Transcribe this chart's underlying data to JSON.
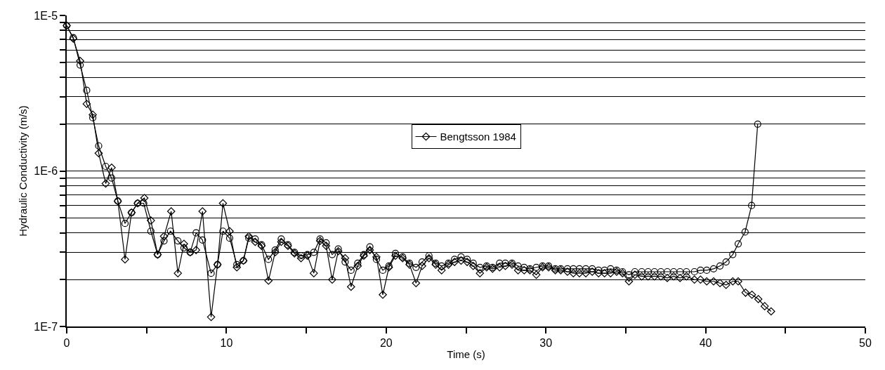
{
  "chart_data": {
    "type": "line",
    "xlabel": "Time (s)",
    "ylabel": "Hydraulic Conductivity (m/s)",
    "xlim": [
      0,
      50
    ],
    "xticks": [
      0,
      {
        "value": 5,
        "label": null
      },
      10,
      {
        "value": 15,
        "label": null
      },
      20,
      {
        "value": 25,
        "label": null
      },
      30,
      {
        "value": 35,
        "label": null
      },
      40,
      {
        "value": 45,
        "label": null
      },
      50
    ],
    "ylim": [
      1e-07,
      1e-05
    ],
    "log": "y",
    "yticks": [
      {
        "value": 1e-07,
        "label": "1E-7"
      },
      {
        "value": 2e-07,
        "label": null
      },
      {
        "value": 3e-07,
        "label": null
      },
      {
        "value": 4e-07,
        "label": null
      },
      {
        "value": 5e-07,
        "label": null
      },
      {
        "value": 6e-07,
        "label": null
      },
      {
        "value": 7e-07,
        "label": null
      },
      {
        "value": 8e-07,
        "label": null
      },
      {
        "value": 9e-07,
        "label": null
      },
      {
        "value": 1e-06,
        "label": "1E-6"
      },
      {
        "value": 2e-06,
        "label": null
      },
      {
        "value": 3e-06,
        "label": null
      },
      {
        "value": 4e-06,
        "label": null
      },
      {
        "value": 5e-06,
        "label": null
      },
      {
        "value": 6e-06,
        "label": null
      },
      {
        "value": 7e-06,
        "label": null
      },
      {
        "value": 8e-06,
        "label": null
      },
      {
        "value": 9e-06,
        "label": null
      },
      {
        "value": 1e-05,
        "label": "1E-5"
      }
    ],
    "grid": "y",
    "legend": "center",
    "line_style": "solid",
    "series": [
      {
        "name": "Bengtsson 1984",
        "color": "#000000",
        "marker": "diamond",
        "x": [
          0,
          0.41,
          0.84,
          1.25,
          1.63,
          2.0,
          2.44,
          2.81,
          3.2,
          3.65,
          4.06,
          4.44,
          4.86,
          5.27,
          5.69,
          6.09,
          6.54,
          6.96,
          7.34,
          7.73,
          8.1,
          8.5,
          9.04,
          9.44,
          9.78,
          10.2,
          10.65,
          11.06,
          11.4,
          11.8,
          12.2,
          12.63,
          13.05,
          13.43,
          13.85,
          14.26,
          14.67,
          15.07,
          15.47,
          15.86,
          16.24,
          16.62,
          17.0,
          17.43,
          17.8,
          18.22,
          18.6,
          18.98,
          19.39,
          19.79,
          20.17,
          20.58,
          21.03,
          21.46,
          21.87,
          22.25,
          22.68,
          23.1,
          23.47,
          23.9,
          24.28,
          24.69,
          25.07,
          25.45,
          25.87,
          26.29,
          26.66,
          27.1,
          27.46,
          27.88,
          28.26,
          28.64,
          29.0,
          29.4,
          29.79,
          30.17,
          30.59,
          30.93,
          31.35,
          31.72,
          32.1,
          32.5,
          32.9,
          33.3,
          33.67,
          34.05,
          34.43,
          34.8,
          35.2,
          35.57,
          36.0,
          36.4,
          36.8,
          37.2,
          37.6,
          38.0,
          38.4,
          38.8,
          39.3,
          39.68,
          40.07,
          40.5,
          40.9,
          41.28,
          41.7,
          42.04,
          42.5,
          42.9,
          43.3,
          43.7,
          44.1
        ],
        "values": [
          8.6e-06,
          7.1e-06,
          5.1e-06,
          2.7e-06,
          2.3e-06,
          1.3e-06,
          8.3e-07,
          1.05e-06,
          6.4e-07,
          2.7e-07,
          5.4e-07,
          6.2e-07,
          6.7e-07,
          4.8e-07,
          2.9e-07,
          3.8e-07,
          5.5e-07,
          2.2e-07,
          3.4e-07,
          3e-07,
          3.1e-07,
          5.5e-07,
          1.15e-07,
          2.5e-07,
          6.2e-07,
          4.1e-07,
          2.4e-07,
          2.65e-07,
          3.8e-07,
          3.5e-07,
          3.3e-07,
          1.97e-07,
          3e-07,
          3.5e-07,
          3.3e-07,
          2.95e-07,
          2.75e-07,
          2.85e-07,
          2.2e-07,
          3.55e-07,
          3.3e-07,
          2e-07,
          3.05e-07,
          2.75e-07,
          1.8e-07,
          2.45e-07,
          2.85e-07,
          3.1e-07,
          2.8e-07,
          1.6e-07,
          2.4e-07,
          2.85e-07,
          2.75e-07,
          2.5e-07,
          1.9e-07,
          2.45e-07,
          2.75e-07,
          2.5e-07,
          2.3e-07,
          2.5e-07,
          2.6e-07,
          2.65e-07,
          2.6e-07,
          2.45e-07,
          2.2e-07,
          2.4e-07,
          2.35e-07,
          2.4e-07,
          2.45e-07,
          2.5e-07,
          2.3e-07,
          2.3e-07,
          2.3e-07,
          2.15e-07,
          2.4e-07,
          2.4e-07,
          2.3e-07,
          2.3e-07,
          2.25e-07,
          2.2e-07,
          2.2e-07,
          2.2e-07,
          2.25e-07,
          2.2e-07,
          2.2e-07,
          2.2e-07,
          2.25e-07,
          2.2e-07,
          1.95e-07,
          2.15e-07,
          2.1e-07,
          2.1e-07,
          2.1e-07,
          2.1e-07,
          2.05e-07,
          2.1e-07,
          2.05e-07,
          2.1e-07,
          2e-07,
          2e-07,
          1.95e-07,
          1.95e-07,
          1.9e-07,
          1.85e-07,
          1.95e-07,
          1.95e-07,
          1.65e-07,
          1.6e-07,
          1.5e-07,
          1.35e-07,
          1.25e-07
        ]
      },
      {
        "color": "#000000",
        "marker": "circle",
        "x": [
          0,
          0.41,
          0.84,
          1.25,
          1.63,
          2.0,
          2.44,
          2.81,
          3.2,
          3.65,
          4.06,
          4.44,
          4.82,
          5.27,
          5.69,
          6.09,
          6.5,
          6.96,
          7.34,
          7.73,
          8.1,
          8.5,
          9.04,
          9.44,
          9.78,
          10.2,
          10.65,
          11.06,
          11.4,
          11.8,
          12.2,
          12.63,
          13.05,
          13.43,
          13.85,
          14.26,
          14.67,
          15.07,
          15.47,
          15.86,
          16.24,
          16.62,
          17.0,
          17.43,
          17.8,
          18.22,
          18.6,
          18.98,
          19.39,
          19.79,
          20.17,
          20.58,
          21.03,
          21.46,
          21.87,
          22.25,
          22.68,
          23.1,
          23.47,
          23.9,
          24.28,
          24.69,
          25.07,
          25.45,
          25.87,
          26.29,
          26.66,
          27.1,
          27.46,
          27.88,
          28.26,
          28.64,
          29.0,
          29.4,
          29.79,
          30.17,
          30.59,
          30.93,
          31.35,
          31.72,
          32.1,
          32.5,
          32.9,
          33.3,
          33.67,
          34.05,
          34.43,
          34.8,
          35.2,
          35.57,
          36.0,
          36.4,
          36.8,
          37.2,
          37.6,
          38.0,
          38.4,
          38.8,
          39.3,
          39.68,
          40.07,
          40.5,
          40.9,
          41.28,
          41.7,
          42.04,
          42.47,
          42.88,
          43.26
        ],
        "values": [
          8.6e-06,
          7.2e-06,
          4.8e-06,
          3.3e-06,
          2.2e-06,
          1.45e-06,
          1.07e-06,
          9e-07,
          6.4e-07,
          4.6e-07,
          5.4e-07,
          6.2e-07,
          6.2e-07,
          4.1e-07,
          2.9e-07,
          3.55e-07,
          4.1e-07,
          3.55e-07,
          3.2e-07,
          3e-07,
          4e-07,
          3.6e-07,
          2.2e-07,
          2.5e-07,
          4.1e-07,
          3.7e-07,
          2.5e-07,
          2.65e-07,
          3.7e-07,
          3.65e-07,
          3.35e-07,
          2.7e-07,
          3.1e-07,
          3.65e-07,
          3.35e-07,
          3e-07,
          2.85e-07,
          2.9e-07,
          3e-07,
          3.65e-07,
          3.45e-07,
          2.9e-07,
          3.15e-07,
          2.6e-07,
          2.3e-07,
          2.55e-07,
          2.9e-07,
          3.25e-07,
          2.7e-07,
          2.3e-07,
          2.45e-07,
          2.95e-07,
          2.8e-07,
          2.55e-07,
          2.4e-07,
          2.6e-07,
          2.85e-07,
          2.55e-07,
          2.45e-07,
          2.55e-07,
          2.7e-07,
          2.8e-07,
          2.7e-07,
          2.55e-07,
          2.4e-07,
          2.45e-07,
          2.4e-07,
          2.55e-07,
          2.55e-07,
          2.55e-07,
          2.45e-07,
          2.4e-07,
          2.35e-07,
          2.4e-07,
          2.45e-07,
          2.45e-07,
          2.35e-07,
          2.35e-07,
          2.35e-07,
          2.35e-07,
          2.35e-07,
          2.35e-07,
          2.35e-07,
          2.3e-07,
          2.3e-07,
          2.35e-07,
          2.3e-07,
          2.25e-07,
          2.15e-07,
          2.25e-07,
          2.25e-07,
          2.25e-07,
          2.25e-07,
          2.25e-07,
          2.25e-07,
          2.25e-07,
          2.25e-07,
          2.25e-07,
          2.25e-07,
          2.3e-07,
          2.3e-07,
          2.35e-07,
          2.45e-07,
          2.6e-07,
          2.9e-07,
          3.4e-07,
          4.05e-07,
          6e-07,
          2e-06
        ]
      }
    ]
  }
}
